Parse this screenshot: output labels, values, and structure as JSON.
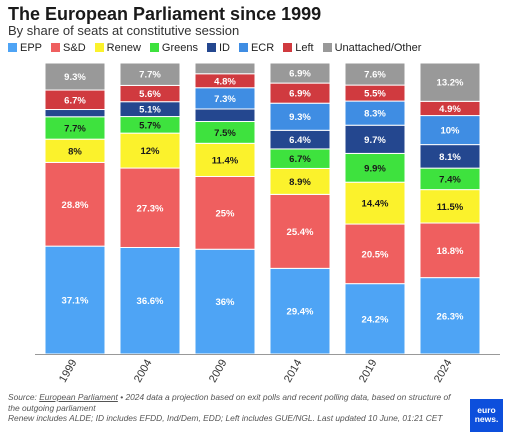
{
  "title": "The European Parliament since 1999",
  "subtitle": "By share of seats at constitutive session",
  "footer": {
    "source_label": "Source: ",
    "source_link": "European Parliament",
    "note1": " • 2024 data a projection based on exit polls and recent polling data, based on structure of the outgoing parliament",
    "note2": "Renew includes ALDE; ID includes EFDD, Ind/Dem, EDD; Left includes GUE/NGL. Last updated 10 June, 01:21 CET"
  },
  "logo": {
    "line1": "euro",
    "line2": "news."
  },
  "colors": {
    "EPP": "#4ea4f5",
    "S&D": "#ef5f5f",
    "Renew": "#fbf22c",
    "Greens": "#3ee23e",
    "ID": "#24478f",
    "ECR": "#3f8de3",
    "Left": "#d03a3f",
    "Unattached/Other": "#999999"
  },
  "chart_data": {
    "type": "bar",
    "stacked": true,
    "normalized": true,
    "categories": [
      "1999",
      "2004",
      "2009",
      "2014",
      "2019",
      "2024"
    ],
    "series": [
      {
        "name": "EPP",
        "values": [
          37.1,
          36.6,
          36,
          29.4,
          24.2,
          26.3
        ],
        "labels": [
          "37.1%",
          "36.6%",
          "36%",
          "29.4%",
          "24.2%",
          "26.3%"
        ]
      },
      {
        "name": "S&D",
        "values": [
          28.8,
          27.3,
          25,
          25.4,
          20.5,
          18.8
        ],
        "labels": [
          "28.8%",
          "27.3%",
          "25%",
          "25.4%",
          "20.5%",
          "18.8%"
        ]
      },
      {
        "name": "Renew",
        "values": [
          8,
          12,
          11.4,
          8.9,
          14.4,
          11.5
        ],
        "labels": [
          "8%",
          "12%",
          "11.4%",
          "8.9%",
          "14.4%",
          "11.5%"
        ]
      },
      {
        "name": "Greens",
        "values": [
          7.7,
          5.7,
          7.5,
          6.7,
          9.9,
          7.4
        ],
        "labels": [
          "7.7%",
          "5.7%",
          "7.5%",
          "6.7%",
          "9.9%",
          "7.4%"
        ]
      },
      {
        "name": "ID",
        "values": [
          2.5,
          5.1,
          4.3,
          6.4,
          9.7,
          8.1
        ],
        "labels": [
          "",
          "5.1%",
          "",
          "6.4%",
          "9.7%",
          "8.1%"
        ]
      },
      {
        "name": "ECR",
        "values": [
          0,
          0,
          7.3,
          9.3,
          8.3,
          10
        ],
        "labels": [
          "",
          "",
          "7.3%",
          "9.3%",
          "8.3%",
          "10%"
        ]
      },
      {
        "name": "Left",
        "values": [
          6.7,
          5.6,
          4.8,
          6.9,
          5.5,
          4.9
        ],
        "labels": [
          "6.7%",
          "5.6%",
          "4.8%",
          "6.9%",
          "5.5%",
          "4.9%"
        ]
      },
      {
        "name": "Unattached/Other",
        "values": [
          9.3,
          7.7,
          3.7,
          6.9,
          7.6,
          13.2
        ],
        "labels": [
          "9.3%",
          "7.7%",
          "",
          "6.9%",
          "7.6%",
          "13.2%"
        ]
      }
    ],
    "ylim": [
      0,
      100
    ],
    "legend_position": "top-left",
    "grid": false
  }
}
